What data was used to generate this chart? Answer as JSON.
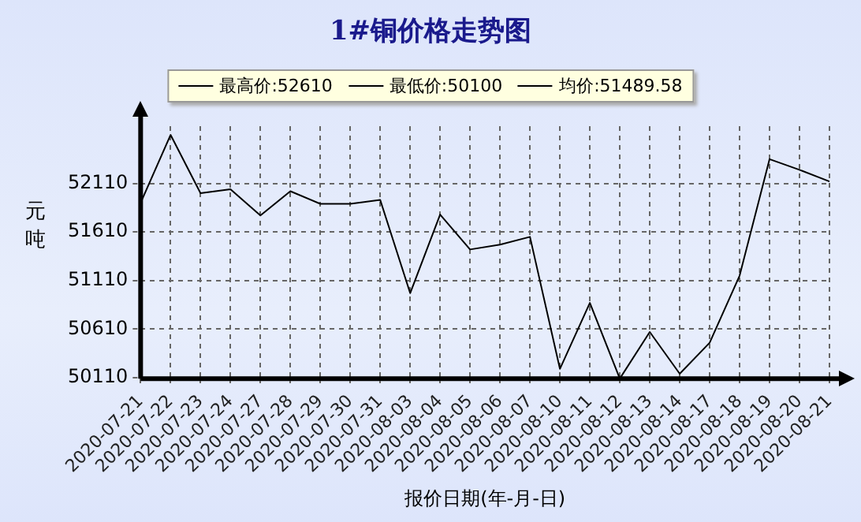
{
  "chart_data": {
    "type": "line",
    "title": "1#铜价格走势图",
    "xlabel": "报价日期(年-月-日)",
    "ylabel": "元吨",
    "annotations": [
      "最高价:52610",
      "最低价:50100",
      "均价:51489.58"
    ],
    "categories": [
      "2020-07-21",
      "2020-07-22",
      "2020-07-23",
      "2020-07-24",
      "2020-07-27",
      "2020-07-28",
      "2020-07-29",
      "2020-07-30",
      "2020-07-31",
      "2020-08-03",
      "2020-08-04",
      "2020-08-05",
      "2020-08-06",
      "2020-08-07",
      "2020-08-10",
      "2020-08-11",
      "2020-08-12",
      "2020-08-13",
      "2020-08-14",
      "2020-08-17",
      "2020-08-18",
      "2020-08-19",
      "2020-08-20",
      "2020-08-21"
    ],
    "series": [
      {
        "color": "#000000",
        "values": [
          51910,
          52610,
          52010,
          52050,
          51780,
          52030,
          51900,
          51900,
          51940,
          50980,
          51790,
          51430,
          51480,
          51560,
          50200,
          50880,
          50100,
          50580,
          50150,
          50470,
          51160,
          52360,
          52250,
          52130
        ]
      }
    ],
    "ylim": [
      50100,
      52700
    ],
    "yticks": [
      50110,
      50610,
      51110,
      51610,
      52110
    ],
    "grid": true,
    "line_style": "solid",
    "marker": "none"
  }
}
